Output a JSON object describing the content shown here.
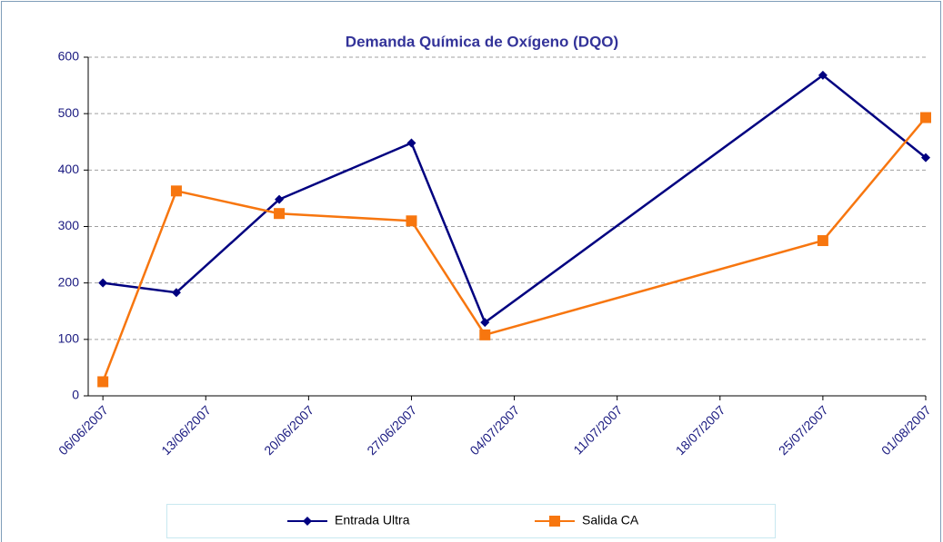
{
  "chart_data": {
    "type": "line",
    "title": "Demanda Química de Oxígeno (DQO)",
    "x": [
      "06/06/2007",
      "11/06/2007",
      "18/06/2007",
      "27/06/2007",
      "02/07/2007",
      "25/07/2007",
      "01/08/2007"
    ],
    "series": [
      {
        "name": "Entrada Ultra",
        "color": "#000080",
        "marker": "diamond",
        "values": [
          200,
          183,
          348,
          448,
          130,
          568,
          422
        ]
      },
      {
        "name": "Salida CA",
        "color": "#f7760f",
        "marker": "square",
        "values": [
          25,
          363,
          323,
          310,
          108,
          275,
          493
        ]
      }
    ],
    "xlim": [
      "05/06/2007",
      "01/08/2007"
    ],
    "xticks": [
      "06/06/2007",
      "13/06/2007",
      "20/06/2007",
      "27/06/2007",
      "04/07/2007",
      "11/07/2007",
      "18/07/2007",
      "25/07/2007",
      "01/08/2007"
    ],
    "ylim": [
      0,
      600
    ],
    "yticks": [
      0,
      100,
      200,
      300,
      400,
      500,
      600
    ],
    "grid": true,
    "legend": "bottom"
  }
}
